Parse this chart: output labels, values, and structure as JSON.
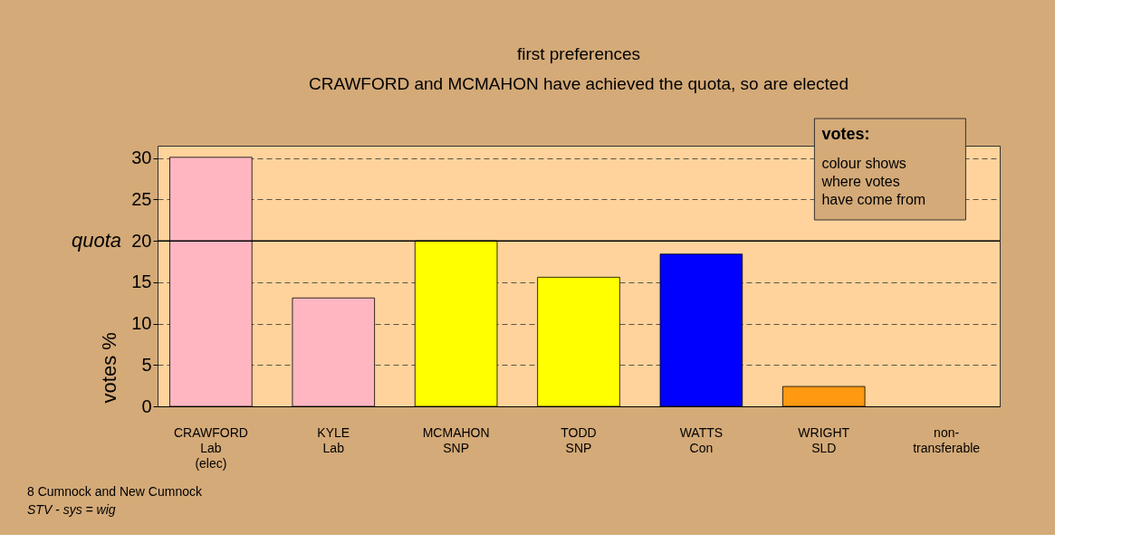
{
  "chart_data": {
    "type": "bar",
    "title": "first preferences",
    "subtitle": "CRAWFORD and MCMAHON have achieved the quota, so are elected",
    "ylabel": "votes %",
    "categories": [
      "CRAWFORD\nLab\n(elec)",
      "KYLE\nLab",
      "MCMAHON\nSNP",
      "TODD\nSNP",
      "WATTS\nCon",
      "WRIGHT\nSLD",
      "non-\ntransferable"
    ],
    "values": [
      30.1,
      13.1,
      20.0,
      15.6,
      18.4,
      2.4,
      null
    ],
    "colors": [
      "#ffb6c1",
      "#ffb6c1",
      "#ffff00",
      "#ffff00",
      "#0000ff",
      "#ff9912",
      "#ff9912"
    ],
    "ylim": [
      0,
      31.5
    ],
    "yticks": [
      0,
      5,
      10,
      15,
      20,
      25,
      30
    ],
    "grid": "y",
    "ref_lines": [
      {
        "axis": "y",
        "value": 20,
        "label": "quota"
      }
    ],
    "annotations": [
      "votes:",
      "colour shows\nwhere votes\nhave come from",
      "8 Cumnock and New Cumnock",
      "STV - sys = wig"
    ]
  }
}
